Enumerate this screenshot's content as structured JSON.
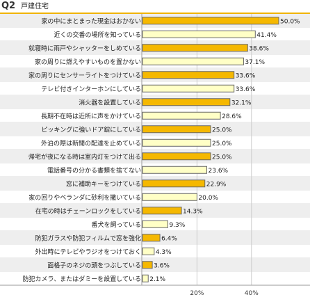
{
  "header": {
    "q_label": "Q2",
    "title": "戸建住宅"
  },
  "chart_data": {
    "type": "bar",
    "orientation": "horizontal",
    "categories": [
      "家の中にまとまった現金はおかない",
      "近くの交番の場所を知っている",
      "就寝時に雨戸やシャッターをしめている",
      "家の周りに燃えやすいものを置かない",
      "家の周りにセンサーライトをつけている",
      "テレビ付きインターホンにしている",
      "消火器を設置している",
      "長期不在時は近所に声をかけている",
      "ピッキングに強いドア錠にしている",
      "外泊の際は新聞の配達を止めている",
      "帰宅が夜になる時は室内灯をつけて出る",
      "電話番号の分かる書類を捨てない",
      "窓に補助キーをつけている",
      "家の回りやベランダに砂利を撒いている",
      "在宅の時はチェーンロックをしている",
      "番犬を飼っている",
      "防犯ガラスや防犯フィルムで窓を強化",
      "外出時にテレビやラジオをつけておく",
      "面格子のネジの頭をつぶしている",
      "防犯カメラ、またはダミーを設置している"
    ],
    "values": [
      50.0,
      41.4,
      38.6,
      37.1,
      33.6,
      33.6,
      32.1,
      28.6,
      25.0,
      25.0,
      25.0,
      23.6,
      22.9,
      20.0,
      14.3,
      9.3,
      6.4,
      4.3,
      3.6,
      2.1
    ],
    "value_labels": [
      "50.0%",
      "41.4%",
      "38.6%",
      "37.1%",
      "33.6%",
      "33.6%",
      "32.1%",
      "28.6%",
      "25.0%",
      "25.0%",
      "25.0%",
      "23.6%",
      "22.9%",
      "20.0%",
      "14.3%",
      "9.3%",
      "6.4%",
      "4.3%",
      "3.6%",
      "2.1%"
    ],
    "highlight_rows": [
      0,
      2,
      4,
      6,
      8,
      10,
      12,
      14,
      16,
      18
    ],
    "xlim": [
      0,
      50
    ],
    "x_ticks": [
      20,
      40
    ],
    "x_tick_labels": [
      "20%",
      "40%"
    ],
    "grid": true,
    "colors": {
      "bar_highlight": "#f5b800",
      "bar_normal": "#ffffc6",
      "bar_border": "#666666",
      "row_band_odd": "#eeeeee",
      "row_band_even": "#ffffff",
      "gridline": "#cccccc",
      "header_accent": "#f0b400"
    }
  }
}
